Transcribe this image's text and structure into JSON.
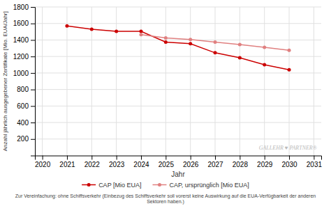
{
  "chart_data": {
    "type": "line",
    "x": [
      2020,
      2021,
      2022,
      2023,
      2024,
      2025,
      2026,
      2027,
      2028,
      2029,
      2030,
      2031
    ],
    "series": [
      {
        "name": "CAP [Mio EUA]",
        "color": "#cc0000",
        "marker": "circle",
        "values": [
          null,
          1570,
          1530,
          1505,
          1505,
          1375,
          1355,
          1245,
          1185,
          1100,
          1040,
          null
        ]
      },
      {
        "name": "CAP, ursprünglich [Mio EUA]",
        "color": "#e08080",
        "marker": "circle",
        "values": [
          null,
          null,
          null,
          null,
          1465,
          1425,
          1405,
          1375,
          1345,
          1310,
          1275,
          null
        ]
      }
    ],
    "xlabel": "Jahr",
    "ylabel": "Anzahl jährlich ausgegebener Zertifikate [Mio. EUA/Jahr]",
    "xlim": [
      2019.7,
      2031.3
    ],
    "xticks": [
      2020,
      2021,
      2022,
      2023,
      2024,
      2025,
      2026,
      2027,
      2028,
      2029,
      2030,
      2031
    ],
    "ylim": [
      0,
      1800
    ],
    "yticks": [
      200,
      400,
      600,
      800,
      1000,
      1200,
      1400,
      1600,
      1800
    ],
    "grid": true,
    "legend": "bottom",
    "annotations": [
      "GALLEHR ♥ PARTNER®",
      "Zur Vereinfachung: ohne Schiffsverkehr (Einbezug des Schiffsverkehr soll vorerst keine Auswirkung auf die EUA-Verfügbarkeit der anderen Sektoren haben.)"
    ]
  }
}
